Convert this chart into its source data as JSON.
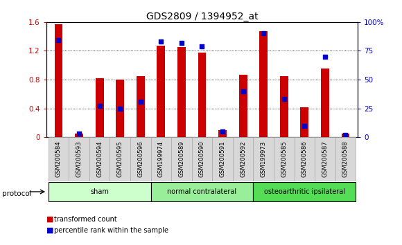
{
  "title": "GDS2809 / 1394952_at",
  "samples": [
    "GSM200584",
    "GSM200593",
    "GSM200594",
    "GSM200595",
    "GSM200596",
    "GSM199974",
    "GSM200589",
    "GSM200590",
    "GSM200591",
    "GSM200592",
    "GSM199973",
    "GSM200585",
    "GSM200586",
    "GSM200587",
    "GSM200588"
  ],
  "transformed_count": [
    1.57,
    0.05,
    0.82,
    0.8,
    0.85,
    1.27,
    1.25,
    1.18,
    0.1,
    0.87,
    1.47,
    0.85,
    0.42,
    0.95,
    0.05
  ],
  "percentile_rank": [
    84,
    3,
    27,
    25,
    31,
    83,
    82,
    79,
    5,
    40,
    90,
    33,
    10,
    70,
    2
  ],
  "groups": [
    {
      "label": "sham",
      "start": 0,
      "end": 4,
      "color": "#ccffcc"
    },
    {
      "label": "normal contralateral",
      "start": 5,
      "end": 9,
      "color": "#99ee99"
    },
    {
      "label": "osteoarthritic ipsilateral",
      "start": 10,
      "end": 14,
      "color": "#55dd55"
    }
  ],
  "bar_color": "#cc0000",
  "dot_color": "#0000cc",
  "left_ylim": [
    0,
    1.6
  ],
  "right_ylim": [
    0,
    100
  ],
  "left_yticks": [
    0,
    0.4,
    0.8,
    1.2,
    1.6
  ],
  "right_yticks": [
    0,
    25,
    50,
    75,
    100
  ],
  "right_yticklabels": [
    "0",
    "25",
    "50",
    "75",
    "100%"
  ],
  "background_color": "#ffffff",
  "plot_bg_color": "#ffffff",
  "bar_width": 0.4,
  "title_fontsize": 10,
  "axis_label_color_left": "#cc0000",
  "axis_label_color_right": "#0000cc",
  "tick_box_color": "#d8d8d8",
  "tick_box_edge": "#aaaaaa"
}
